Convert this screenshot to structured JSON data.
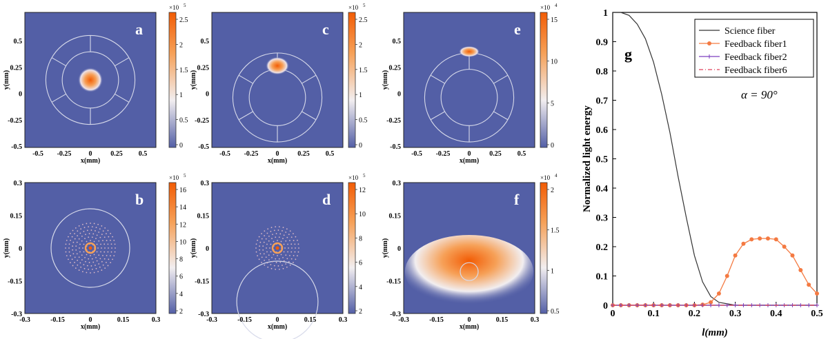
{
  "colors": {
    "background": "#535FA6",
    "hot": "#F25C05",
    "warm": "#F6A057",
    "ring": "#D7DAEA",
    "science": "#333333",
    "feedback1": "#F47A42",
    "feedback2": "#7C3FBF",
    "feedback6": "#E0405B"
  },
  "heatmaps": [
    {
      "label": "a",
      "xlabel": "x(mm)",
      "ylabel": "y(mm)",
      "xticks": [
        "-0.5",
        "-0.25",
        "0",
        "0.25",
        "0.5"
      ],
      "yticks": [
        "0.5",
        "0.25",
        "0",
        "-0.25",
        "-0.5"
      ],
      "colorbar": {
        "exponent": "×10",
        "power": "5",
        "ticks": [
          "2.5",
          "2",
          "1.5",
          "1",
          "0.5",
          "0"
        ]
      }
    },
    {
      "label": "c",
      "xlabel": "x(mm)",
      "ylabel": "y(mm)",
      "xticks": [
        "-0.5",
        "-0.25",
        "0",
        "0.25",
        "0.5"
      ],
      "yticks": [
        "0.5",
        "0.25",
        "0",
        "-0.25",
        "-0.5"
      ],
      "colorbar": {
        "exponent": "×10",
        "power": "5",
        "ticks": [
          "2.5",
          "2",
          "1.5",
          "1",
          "0.5",
          "0"
        ]
      }
    },
    {
      "label": "e",
      "xlabel": "x(mm)",
      "ylabel": "y(mm)",
      "xticks": [
        "-0.5",
        "-0.25",
        "0",
        "0.25",
        "0.5"
      ],
      "yticks": [
        "0.5",
        "0.25",
        "0",
        "-0.25",
        "-0.5"
      ],
      "colorbar": {
        "exponent": "×10",
        "power": "4",
        "ticks": [
          "15",
          "10",
          "5",
          "0"
        ]
      }
    },
    {
      "label": "b",
      "xlabel": "x(mm)",
      "ylabel": "y(mm)",
      "xticks": [
        "-0.3",
        "-0.15",
        "0",
        "0.15",
        "0.3"
      ],
      "yticks": [
        "0.3",
        "0.15",
        "0",
        "-0.15",
        "-0.3"
      ],
      "colorbar": {
        "exponent": "×10",
        "power": "5",
        "ticks": [
          "16",
          "14",
          "12",
          "10",
          "8",
          "6",
          "4",
          "2"
        ]
      }
    },
    {
      "label": "d",
      "xlabel": "x(mm)",
      "ylabel": "y(mm)",
      "xticks": [
        "-0.3",
        "-0.15",
        "0",
        "0.15",
        "0.3"
      ],
      "yticks": [
        "0.3",
        "0.15",
        "0",
        "-0.15",
        "-0.3"
      ],
      "colorbar": {
        "exponent": "×10",
        "power": "5",
        "ticks": [
          "12",
          "10",
          "8",
          "6",
          "4",
          "2"
        ]
      }
    },
    {
      "label": "f",
      "xlabel": "x(mm)",
      "ylabel": "y(mm)",
      "xticks": [
        "-0.3",
        "-0.15",
        "0",
        "0.15",
        "0.3"
      ],
      "yticks": [
        "0.3",
        "0.15",
        "0",
        "-0.15",
        "-0.3"
      ],
      "colorbar": {
        "exponent": "×10",
        "power": "4",
        "ticks": [
          "2",
          "1.5",
          "1",
          "0.5"
        ]
      }
    }
  ],
  "chart_data": {
    "type": "line",
    "label": "g",
    "annotation": "α = 90°",
    "xlabel": "l(mm)",
    "ylabel": "Normalized light energy",
    "xlim": [
      0,
      0.5
    ],
    "ylim": [
      0,
      1
    ],
    "xticks": [
      "0",
      "0.1",
      "0.2",
      "0.3",
      "0.4",
      "0.5"
    ],
    "yticks": [
      "0",
      "0.1",
      "0.2",
      "0.3",
      "0.4",
      "0.5",
      "0.6",
      "0.7",
      "0.8",
      "0.9",
      "1"
    ],
    "legend": "top-right",
    "x": [
      0,
      0.02,
      0.04,
      0.06,
      0.08,
      0.1,
      0.12,
      0.14,
      0.16,
      0.18,
      0.2,
      0.22,
      0.24,
      0.26,
      0.28,
      0.3,
      0.32,
      0.34,
      0.36,
      0.38,
      0.4,
      0.42,
      0.44,
      0.46,
      0.48,
      0.5
    ],
    "series": [
      {
        "name": "Science fiber",
        "marker": "none",
        "values": [
          1,
          1,
          0.99,
          0.96,
          0.91,
          0.83,
          0.72,
          0.59,
          0.44,
          0.3,
          0.17,
          0.08,
          0.03,
          0.01,
          0.005,
          0,
          0,
          0,
          0,
          0,
          0,
          0,
          0,
          0,
          0,
          0
        ]
      },
      {
        "name": "Feedback fiber1",
        "marker": "circle",
        "values": [
          0,
          0,
          0,
          0,
          0,
          0,
          0,
          0,
          0,
          0,
          0,
          0.002,
          0.01,
          0.04,
          0.1,
          0.17,
          0.21,
          0.225,
          0.228,
          0.228,
          0.225,
          0.2,
          0.17,
          0.12,
          0.07,
          0.04
        ]
      },
      {
        "name": "Feedback fiber2",
        "marker": "plus",
        "values": [
          0,
          0,
          0,
          0,
          0,
          0,
          0,
          0,
          0,
          0,
          0,
          0,
          0,
          0,
          0,
          0,
          0,
          0,
          0,
          0,
          0,
          0,
          0,
          0,
          0,
          0
        ]
      },
      {
        "name": "Feedback fiber6",
        "marker": "dashdot",
        "values": [
          0,
          0,
          0,
          0,
          0,
          0,
          0,
          0,
          0,
          0,
          0,
          0,
          0,
          0,
          0,
          0,
          0,
          0,
          0,
          0,
          0,
          0,
          0,
          0,
          0,
          0
        ]
      }
    ]
  }
}
